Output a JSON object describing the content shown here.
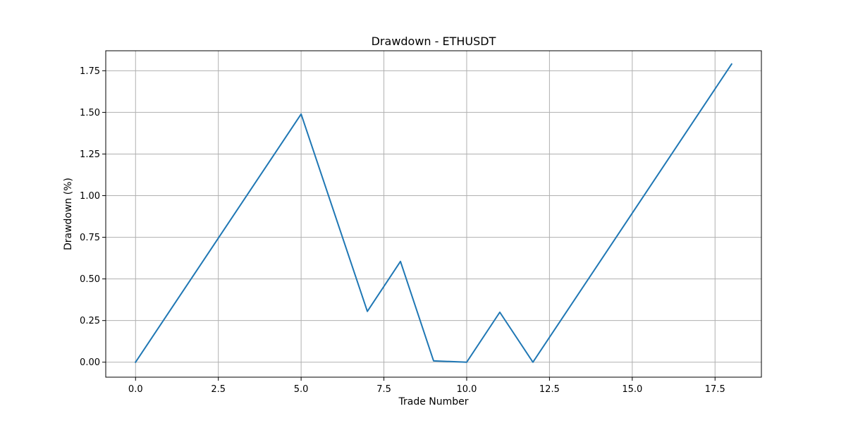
{
  "chart_data": {
    "type": "line",
    "title": "Drawdown - ETHUSDT",
    "xlabel": "Trade Number",
    "ylabel": "Drawdown (%)",
    "xlim": [
      -0.9,
      18.9
    ],
    "ylim": [
      -0.09,
      1.87
    ],
    "x_ticks": [
      0.0,
      2.5,
      5.0,
      7.5,
      10.0,
      12.5,
      15.0,
      17.5
    ],
    "x_tick_labels": [
      "0.0",
      "2.5",
      "5.0",
      "7.5",
      "10.0",
      "12.5",
      "15.0",
      "17.5"
    ],
    "y_ticks": [
      0.0,
      0.25,
      0.5,
      0.75,
      1.0,
      1.25,
      1.5,
      1.75
    ],
    "y_tick_labels": [
      "0.00",
      "0.25",
      "0.50",
      "0.75",
      "1.00",
      "1.25",
      "1.50",
      "1.75"
    ],
    "grid": true,
    "series": [
      {
        "color": "#1f77b4",
        "x": [
          0,
          5,
          7,
          8,
          9,
          10,
          11,
          12,
          18
        ],
        "y": [
          0.0,
          1.49,
          0.305,
          0.605,
          0.008,
          0.0,
          0.3,
          0.0,
          1.79
        ]
      }
    ]
  }
}
